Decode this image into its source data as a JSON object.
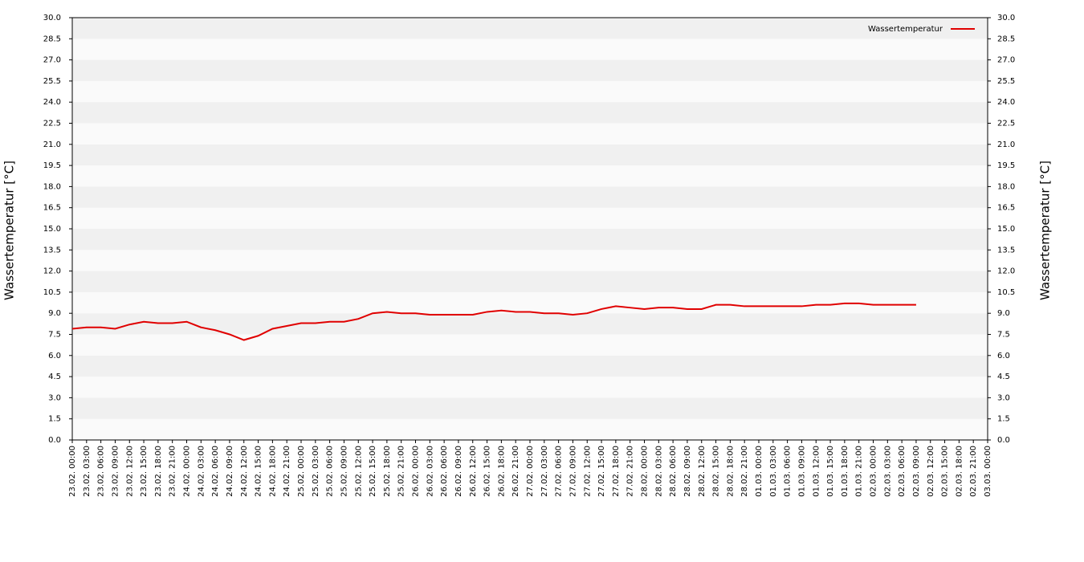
{
  "chart_data": {
    "type": "line",
    "y_label": "Wassertemperatur [°C]",
    "y2_label": "Wassertemperatur [°C]",
    "categories": [
      "23.02. 00:00",
      "23.02. 03:00",
      "23.02. 06:00",
      "23.02. 09:00",
      "23.02. 12:00",
      "23.02. 15:00",
      "23.02. 18:00",
      "23.02. 21:00",
      "24.02. 00:00",
      "24.02. 03:00",
      "24.02. 06:00",
      "24.02. 09:00",
      "24.02. 12:00",
      "24.02. 15:00",
      "24.02. 18:00",
      "24.02. 21:00",
      "25.02. 00:00",
      "25.02. 03:00",
      "25.02. 06:00",
      "25.02. 09:00",
      "25.02. 12:00",
      "25.02. 15:00",
      "25.02. 18:00",
      "25.02. 21:00",
      "26.02. 00:00",
      "26.02. 03:00",
      "26.02. 06:00",
      "26.02. 09:00",
      "26.02. 12:00",
      "26.02. 15:00",
      "26.02. 18:00",
      "26.02. 21:00",
      "27.02. 00:00",
      "27.02. 03:00",
      "27.02. 06:00",
      "27.02. 09:00",
      "27.02. 12:00",
      "27.02. 15:00",
      "27.02. 18:00",
      "27.02. 21:00",
      "28.02. 00:00",
      "28.02. 03:00",
      "28.02. 06:00",
      "28.02. 09:00",
      "28.02. 12:00",
      "28.02. 15:00",
      "28.02. 18:00",
      "28.02. 21:00",
      "01.03. 00:00",
      "01.03. 03:00",
      "01.03. 06:00",
      "01.03. 09:00",
      "01.03. 12:00",
      "01.03. 15:00",
      "01.03. 18:00",
      "01.03. 21:00",
      "02.03. 00:00",
      "02.03. 03:00",
      "02.03. 06:00",
      "02.03. 09:00",
      "02.03. 12:00",
      "02.03. 15:00",
      "02.03. 18:00",
      "02.03. 21:00",
      "03.03. 00:00"
    ],
    "series": [
      {
        "name": "Wassertemperatur",
        "color": "#e00000",
        "values": [
          7.9,
          8.0,
          8.0,
          7.9,
          8.2,
          8.4,
          8.3,
          8.3,
          8.4,
          8.0,
          7.8,
          7.5,
          7.1,
          7.4,
          7.9,
          8.1,
          8.3,
          8.3,
          8.4,
          8.4,
          8.6,
          9.0,
          9.1,
          9.0,
          9.0,
          8.9,
          8.9,
          8.9,
          8.9,
          9.1,
          9.2,
          9.1,
          9.1,
          9.0,
          9.0,
          8.9,
          9.0,
          9.3,
          9.5,
          9.4,
          9.3,
          9.4,
          9.4,
          9.3,
          9.3,
          9.6,
          9.6,
          9.5,
          9.5,
          9.5,
          9.5,
          9.5,
          9.6,
          9.6,
          9.7,
          9.7,
          9.6,
          9.6,
          9.6,
          9.6,
          null,
          null,
          null,
          null,
          null
        ]
      }
    ],
    "ylim": [
      0,
      30
    ],
    "yticks": [
      {
        "value": 0,
        "label": "0.0"
      },
      {
        "value": 1.5,
        "label": "1.5"
      },
      {
        "value": 3,
        "label": "3.0"
      },
      {
        "value": 4.5,
        "label": "4.5"
      },
      {
        "value": 6,
        "label": "6.0"
      },
      {
        "value": 7.5,
        "label": "7.5"
      },
      {
        "value": 9,
        "label": "9.0"
      },
      {
        "value": 10.5,
        "label": "10.5"
      },
      {
        "value": 12,
        "label": "12.0"
      },
      {
        "value": 13.5,
        "label": "13.5"
      },
      {
        "value": 15,
        "label": "15.0"
      },
      {
        "value": 16.5,
        "label": "16.5"
      },
      {
        "value": 18,
        "label": "18.0"
      },
      {
        "value": 19.5,
        "label": "19.5"
      },
      {
        "value": 21,
        "label": "21.0"
      },
      {
        "value": 22.5,
        "label": "22.5"
      },
      {
        "value": 24,
        "label": "24.0"
      },
      {
        "value": 25.5,
        "label": "25.5"
      },
      {
        "value": 27,
        "label": "27.0"
      },
      {
        "value": 28.5,
        "label": "28.5"
      },
      {
        "value": 30,
        "label": "30.0"
      }
    ],
    "y2lim": [
      0,
      30
    ],
    "y2ticks": [
      {
        "value": 0,
        "label": "0.0"
      },
      {
        "value": 1.5,
        "label": "1.5"
      },
      {
        "value": 3,
        "label": "3.0"
      },
      {
        "value": 4.5,
        "label": "4.5"
      },
      {
        "value": 6,
        "label": "6.0"
      },
      {
        "value": 7.5,
        "label": "7.5"
      },
      {
        "value": 9,
        "label": "9.0"
      },
      {
        "value": 10.5,
        "label": "10.5"
      },
      {
        "value": 12,
        "label": "12.0"
      },
      {
        "value": 13.5,
        "label": "13.5"
      },
      {
        "value": 15,
        "label": "15.0"
      },
      {
        "value": 16.5,
        "label": "16.5"
      },
      {
        "value": 18,
        "label": "18.0"
      },
      {
        "value": 19.5,
        "label": "19.5"
      },
      {
        "value": 21,
        "label": "21.0"
      },
      {
        "value": 22.5,
        "label": "22.5"
      },
      {
        "value": 24,
        "label": "24.0"
      },
      {
        "value": 25.5,
        "label": "25.5"
      },
      {
        "value": 27,
        "label": "27.0"
      },
      {
        "value": 28.5,
        "label": "28.5"
      },
      {
        "value": 30,
        "label": "30.0"
      }
    ],
    "legend": "top-right"
  }
}
